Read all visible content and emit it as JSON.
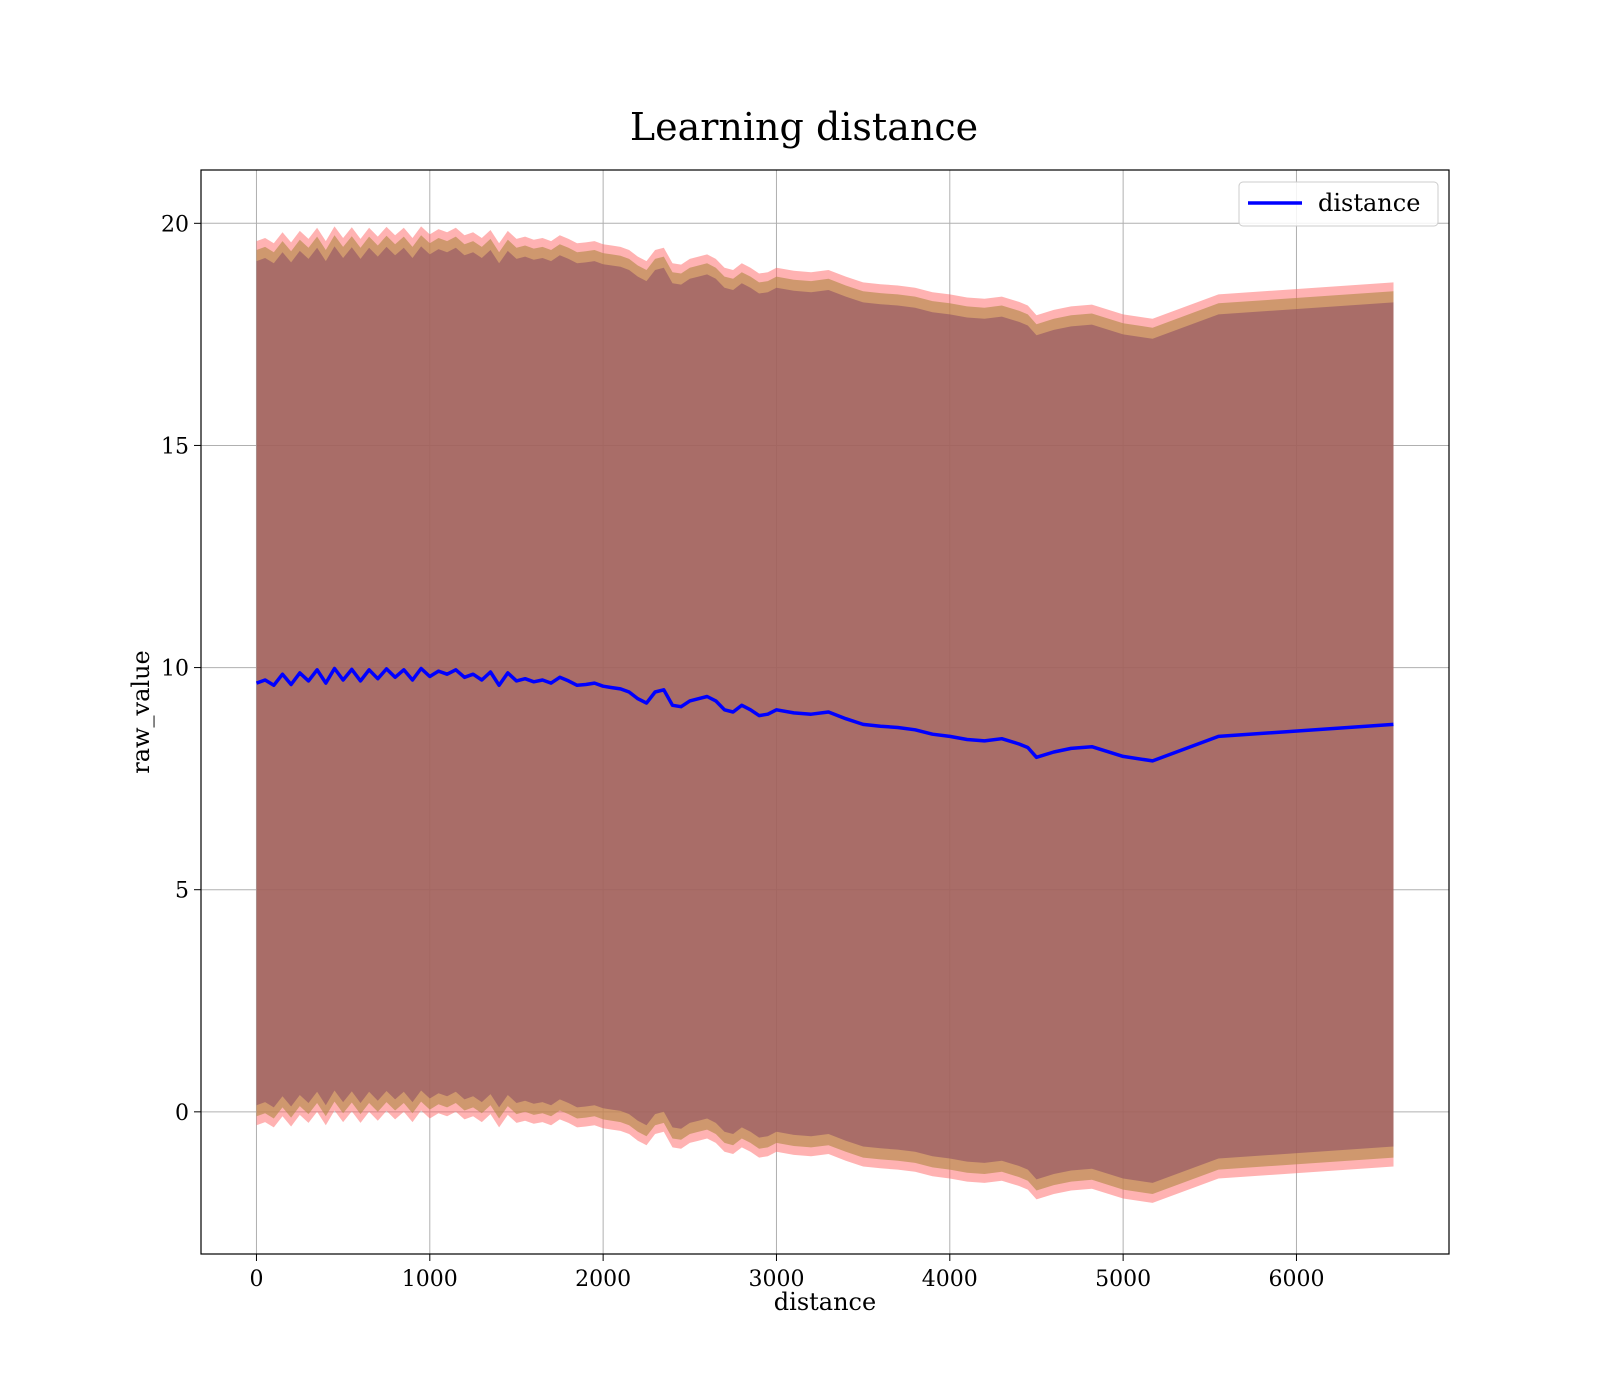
{
  "chart_data": {
    "type": "line",
    "title": "Learning distance",
    "xlabel": "distance",
    "ylabel": "raw_value",
    "xlim": [
      -320,
      6880
    ],
    "ylim": [
      -3.2,
      21.2
    ],
    "xticks": [
      0,
      1000,
      2000,
      3000,
      4000,
      5000,
      6000
    ],
    "yticks": [
      0,
      5,
      10,
      15,
      20
    ],
    "grid": true,
    "legend": {
      "position": "top-right",
      "entries": [
        "distance"
      ]
    },
    "series": [
      {
        "name": "distance",
        "color": "#0000ff",
        "x": [
          0,
          50,
          100,
          150,
          200,
          250,
          300,
          350,
          400,
          450,
          500,
          550,
          600,
          650,
          700,
          750,
          800,
          850,
          900,
          950,
          1000,
          1050,
          1100,
          1150,
          1200,
          1250,
          1300,
          1350,
          1400,
          1450,
          1500,
          1550,
          1600,
          1650,
          1700,
          1750,
          1800,
          1850,
          1900,
          1950,
          2000,
          2050,
          2100,
          2150,
          2200,
          2250,
          2300,
          2350,
          2400,
          2450,
          2500,
          2550,
          2600,
          2650,
          2700,
          2750,
          2800,
          2850,
          2900,
          2950,
          3000,
          3100,
          3200,
          3300,
          3400,
          3500,
          3600,
          3700,
          3800,
          3900,
          4000,
          4100,
          4200,
          4300,
          4400,
          4450,
          4500,
          4600,
          4700,
          4820,
          5000,
          5170,
          5550,
          6560
        ],
        "y": [
          9.65,
          9.72,
          9.6,
          9.85,
          9.62,
          9.88,
          9.7,
          9.95,
          9.65,
          9.98,
          9.72,
          9.96,
          9.7,
          9.95,
          9.75,
          9.97,
          9.78,
          9.95,
          9.72,
          9.98,
          9.8,
          9.92,
          9.85,
          9.95,
          9.78,
          9.85,
          9.72,
          9.9,
          9.6,
          9.88,
          9.7,
          9.75,
          9.68,
          9.72,
          9.65,
          9.78,
          9.7,
          9.6,
          9.62,
          9.65,
          9.58,
          9.55,
          9.52,
          9.45,
          9.3,
          9.2,
          9.45,
          9.5,
          9.15,
          9.12,
          9.25,
          9.3,
          9.35,
          9.25,
          9.05,
          9.0,
          9.15,
          9.05,
          8.92,
          8.95,
          9.05,
          8.98,
          8.95,
          9.0,
          8.85,
          8.72,
          8.68,
          8.65,
          8.6,
          8.5,
          8.45,
          8.38,
          8.35,
          8.4,
          8.28,
          8.2,
          7.98,
          8.1,
          8.18,
          8.22,
          8.0,
          7.9,
          8.45,
          8.72
        ]
      }
    ],
    "bands": [
      {
        "color": "#ff6666",
        "opacity": 0.5,
        "lower_offset": -9.95,
        "upper_offset": 9.95
      },
      {
        "color": "#b58a4a",
        "opacity": 0.65,
        "lower_offset": -9.75,
        "upper_offset": 9.75
      },
      {
        "color": "#8b4a64",
        "opacity": 0.55,
        "lower_offset": -9.5,
        "upper_offset": 9.5
      }
    ]
  }
}
